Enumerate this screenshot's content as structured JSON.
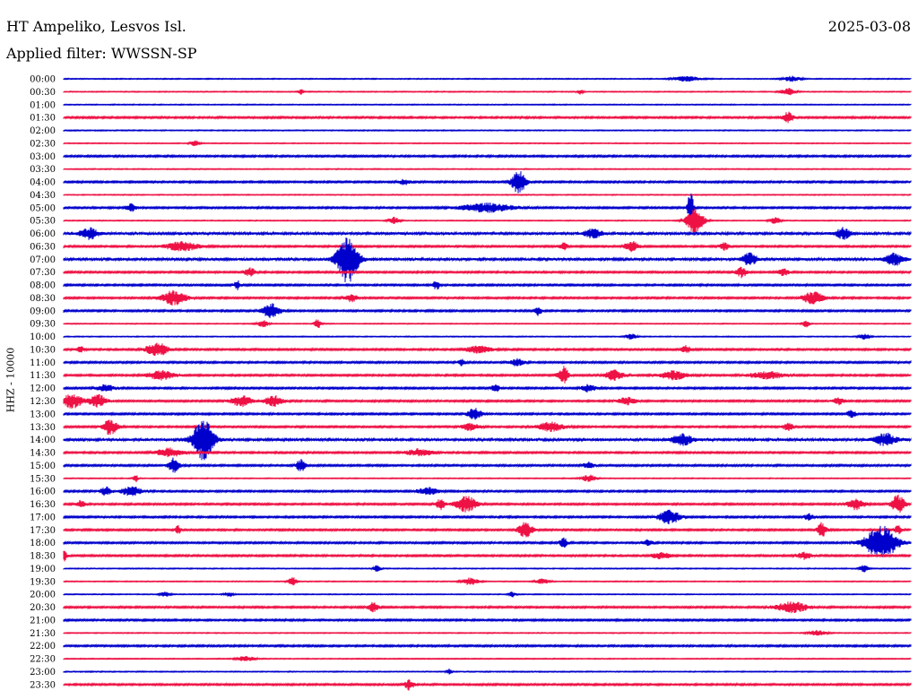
{
  "header": {
    "station": "HT Ampeliko, Lesvos Isl.",
    "date": "2025-03-08",
    "filter_label": "Applied filter: WWSSN-SP"
  },
  "chart_data": {
    "type": "line",
    "title": "HT Ampeliko, Lesvos Isl.",
    "subtitle": "Applied filter: WWSSN-SP",
    "ylabel": "HHZ - 10000",
    "trace_colors": [
      "#0000cc",
      "#ee1144"
    ],
    "rows": [
      {
        "label": "00:00",
        "noise": 1,
        "events": [
          {
            "t": 0.735,
            "a": 3,
            "w": 0.015
          },
          {
            "t": 0.86,
            "a": 3,
            "w": 0.01
          }
        ]
      },
      {
        "label": "00:30",
        "noise": 1,
        "events": [
          {
            "t": 0.28,
            "a": 3,
            "w": 0.003
          },
          {
            "t": 0.61,
            "a": 3,
            "w": 0.003
          },
          {
            "t": 0.855,
            "a": 4,
            "w": 0.008
          }
        ]
      },
      {
        "label": "01:00",
        "noise": 1,
        "events": []
      },
      {
        "label": "01:30",
        "noise": 2,
        "events": [
          {
            "t": 0.855,
            "a": 6,
            "w": 0.006
          }
        ]
      },
      {
        "label": "02:00",
        "noise": 1,
        "events": []
      },
      {
        "label": "02:30",
        "noise": 1,
        "events": [
          {
            "t": 0.155,
            "a": 3,
            "w": 0.005
          }
        ]
      },
      {
        "label": "03:00",
        "noise": 2,
        "events": []
      },
      {
        "label": "03:30",
        "noise": 1,
        "events": []
      },
      {
        "label": "04:00",
        "noise": 2,
        "events": [
          {
            "t": 0.402,
            "a": 3,
            "w": 0.006
          },
          {
            "t": 0.537,
            "a": 13,
            "w": 0.008
          }
        ]
      },
      {
        "label": "04:30",
        "noise": 1,
        "events": []
      },
      {
        "label": "05:00",
        "noise": 2,
        "events": [
          {
            "t": 0.08,
            "a": 4,
            "w": 0.006
          },
          {
            "t": 0.5,
            "a": 5,
            "w": 0.03
          },
          {
            "t": 0.74,
            "a": 23,
            "w": 0.003
          }
        ]
      },
      {
        "label": "05:30",
        "noise": 1,
        "events": [
          {
            "t": 0.39,
            "a": 4,
            "w": 0.006
          },
          {
            "t": 0.745,
            "a": 14,
            "w": 0.01
          },
          {
            "t": 0.84,
            "a": 4,
            "w": 0.006
          }
        ]
      },
      {
        "label": "06:00",
        "noise": 3,
        "events": [
          {
            "t": 0.03,
            "a": 6,
            "w": 0.01
          },
          {
            "t": 0.625,
            "a": 5,
            "w": 0.01
          },
          {
            "t": 0.92,
            "a": 6,
            "w": 0.008
          }
        ]
      },
      {
        "label": "06:30",
        "noise": 2,
        "events": [
          {
            "t": 0.14,
            "a": 5,
            "w": 0.02
          },
          {
            "t": 0.59,
            "a": 4,
            "w": 0.005
          },
          {
            "t": 0.67,
            "a": 6,
            "w": 0.008
          },
          {
            "t": 0.78,
            "a": 4,
            "w": 0.005
          }
        ]
      },
      {
        "label": "07:00",
        "noise": 3,
        "events": [
          {
            "t": 0.335,
            "a": 26,
            "w": 0.012
          },
          {
            "t": 0.81,
            "a": 7,
            "w": 0.008
          },
          {
            "t": 0.98,
            "a": 7,
            "w": 0.01
          }
        ]
      },
      {
        "label": "07:30",
        "noise": 2,
        "events": [
          {
            "t": 0.22,
            "a": 5,
            "w": 0.006
          },
          {
            "t": 0.8,
            "a": 6,
            "w": 0.006
          },
          {
            "t": 0.85,
            "a": 4,
            "w": 0.006
          }
        ]
      },
      {
        "label": "08:00",
        "noise": 2,
        "events": [
          {
            "t": 0.205,
            "a": 6,
            "w": 0.003
          },
          {
            "t": 0.44,
            "a": 5,
            "w": 0.004
          }
        ]
      },
      {
        "label": "08:30",
        "noise": 2,
        "events": [
          {
            "t": 0.13,
            "a": 8,
            "w": 0.015
          },
          {
            "t": 0.34,
            "a": 4,
            "w": 0.008
          },
          {
            "t": 0.885,
            "a": 7,
            "w": 0.012
          }
        ]
      },
      {
        "label": "09:00",
        "noise": 2,
        "events": [
          {
            "t": 0.245,
            "a": 8,
            "w": 0.01
          },
          {
            "t": 0.56,
            "a": 5,
            "w": 0.004
          }
        ]
      },
      {
        "label": "09:30",
        "noise": 1,
        "events": [
          {
            "t": 0.235,
            "a": 4,
            "w": 0.006
          },
          {
            "t": 0.3,
            "a": 5,
            "w": 0.004
          },
          {
            "t": 0.876,
            "a": 4,
            "w": 0.004
          }
        ]
      },
      {
        "label": "10:00",
        "noise": 1,
        "events": [
          {
            "t": 0.67,
            "a": 3,
            "w": 0.006
          },
          {
            "t": 0.945,
            "a": 3,
            "w": 0.006
          }
        ]
      },
      {
        "label": "10:30",
        "noise": 2,
        "events": [
          {
            "t": 0.02,
            "a": 3,
            "w": 0.005
          },
          {
            "t": 0.11,
            "a": 8,
            "w": 0.012
          },
          {
            "t": 0.49,
            "a": 4,
            "w": 0.015
          },
          {
            "t": 0.735,
            "a": 4,
            "w": 0.006
          }
        ]
      },
      {
        "label": "11:00",
        "noise": 2,
        "events": [
          {
            "t": 0.47,
            "a": 4,
            "w": 0.004
          },
          {
            "t": 0.535,
            "a": 4,
            "w": 0.008
          }
        ]
      },
      {
        "label": "11:30",
        "noise": 2,
        "events": [
          {
            "t": 0.115,
            "a": 5,
            "w": 0.015
          },
          {
            "t": 0.59,
            "a": 10,
            "w": 0.006
          },
          {
            "t": 0.65,
            "a": 6,
            "w": 0.01
          },
          {
            "t": 0.72,
            "a": 5,
            "w": 0.015
          },
          {
            "t": 0.83,
            "a": 4,
            "w": 0.02
          }
        ]
      },
      {
        "label": "12:00",
        "noise": 2,
        "events": [
          {
            "t": 0.05,
            "a": 4,
            "w": 0.01
          },
          {
            "t": 0.51,
            "a": 4,
            "w": 0.005
          },
          {
            "t": 0.62,
            "a": 4,
            "w": 0.008
          }
        ]
      },
      {
        "label": "12:30",
        "noise": 2,
        "events": [
          {
            "t": 0.01,
            "a": 8,
            "w": 0.012
          },
          {
            "t": 0.04,
            "a": 7,
            "w": 0.01
          },
          {
            "t": 0.21,
            "a": 6,
            "w": 0.012
          },
          {
            "t": 0.248,
            "a": 6,
            "w": 0.01
          },
          {
            "t": 0.665,
            "a": 4,
            "w": 0.01
          },
          {
            "t": 0.915,
            "a": 4,
            "w": 0.006
          }
        ]
      },
      {
        "label": "13:00",
        "noise": 2,
        "events": [
          {
            "t": 0.485,
            "a": 6,
            "w": 0.008
          },
          {
            "t": 0.93,
            "a": 4,
            "w": 0.005
          }
        ]
      },
      {
        "label": "13:30",
        "noise": 2,
        "events": [
          {
            "t": 0.055,
            "a": 9,
            "w": 0.008
          },
          {
            "t": 0.48,
            "a": 4,
            "w": 0.01
          },
          {
            "t": 0.575,
            "a": 5,
            "w": 0.015
          },
          {
            "t": 0.855,
            "a": 4,
            "w": 0.006
          }
        ]
      },
      {
        "label": "14:00",
        "noise": 3,
        "events": [
          {
            "t": 0.165,
            "a": 24,
            "w": 0.012
          },
          {
            "t": 0.73,
            "a": 6,
            "w": 0.012
          },
          {
            "t": 0.97,
            "a": 7,
            "w": 0.012
          }
        ]
      },
      {
        "label": "14:30",
        "noise": 2,
        "events": [
          {
            "t": 0.125,
            "a": 5,
            "w": 0.015
          },
          {
            "t": 0.42,
            "a": 4,
            "w": 0.015
          }
        ]
      },
      {
        "label": "15:00",
        "noise": 2,
        "events": [
          {
            "t": 0.13,
            "a": 9,
            "w": 0.006
          },
          {
            "t": 0.28,
            "a": 7,
            "w": 0.005
          },
          {
            "t": 0.62,
            "a": 4,
            "w": 0.006
          }
        ]
      },
      {
        "label": "15:30",
        "noise": 1,
        "events": [
          {
            "t": 0.085,
            "a": 4,
            "w": 0.003
          },
          {
            "t": 0.62,
            "a": 4,
            "w": 0.008
          }
        ]
      },
      {
        "label": "16:00",
        "noise": 2,
        "events": [
          {
            "t": 0.05,
            "a": 5,
            "w": 0.006
          },
          {
            "t": 0.08,
            "a": 5,
            "w": 0.012
          },
          {
            "t": 0.43,
            "a": 4,
            "w": 0.012
          }
        ]
      },
      {
        "label": "16:30",
        "noise": 2,
        "events": [
          {
            "t": 0.02,
            "a": 4,
            "w": 0.005
          },
          {
            "t": 0.445,
            "a": 6,
            "w": 0.005
          },
          {
            "t": 0.475,
            "a": 9,
            "w": 0.012
          },
          {
            "t": 0.935,
            "a": 6,
            "w": 0.01
          },
          {
            "t": 0.985,
            "a": 10,
            "w": 0.008
          }
        ]
      },
      {
        "label": "17:00",
        "noise": 2,
        "events": [
          {
            "t": 0.715,
            "a": 8,
            "w": 0.012
          },
          {
            "t": 0.88,
            "a": 4,
            "w": 0.005
          }
        ]
      },
      {
        "label": "17:30",
        "noise": 2,
        "events": [
          {
            "t": 0.135,
            "a": 5,
            "w": 0.003
          },
          {
            "t": 0.545,
            "a": 9,
            "w": 0.008
          },
          {
            "t": 0.895,
            "a": 8,
            "w": 0.005
          },
          {
            "t": 0.985,
            "a": 5,
            "w": 0.004
          }
        ]
      },
      {
        "label": "18:00",
        "noise": 2,
        "events": [
          {
            "t": 0.59,
            "a": 6,
            "w": 0.004
          },
          {
            "t": 0.69,
            "a": 4,
            "w": 0.005
          },
          {
            "t": 0.965,
            "a": 19,
            "w": 0.018
          }
        ]
      },
      {
        "label": "18:30",
        "noise": 2,
        "events": [
          {
            "t": 0.0,
            "a": 6,
            "w": 0.004
          },
          {
            "t": 0.705,
            "a": 4,
            "w": 0.01
          },
          {
            "t": 0.875,
            "a": 4,
            "w": 0.008
          }
        ]
      },
      {
        "label": "19:00",
        "noise": 1,
        "events": [
          {
            "t": 0.37,
            "a": 4,
            "w": 0.004
          },
          {
            "t": 0.945,
            "a": 4,
            "w": 0.005
          }
        ]
      },
      {
        "label": "19:30",
        "noise": 1,
        "events": [
          {
            "t": 0.27,
            "a": 5,
            "w": 0.005
          },
          {
            "t": 0.48,
            "a": 4,
            "w": 0.01
          },
          {
            "t": 0.565,
            "a": 3,
            "w": 0.008
          }
        ]
      },
      {
        "label": "20:00",
        "noise": 1,
        "events": [
          {
            "t": 0.12,
            "a": 3,
            "w": 0.005
          },
          {
            "t": 0.195,
            "a": 3,
            "w": 0.005
          },
          {
            "t": 0.53,
            "a": 3,
            "w": 0.004
          }
        ]
      },
      {
        "label": "20:30",
        "noise": 2,
        "events": [
          {
            "t": 0.365,
            "a": 5,
            "w": 0.006
          },
          {
            "t": 0.86,
            "a": 6,
            "w": 0.018
          }
        ]
      },
      {
        "label": "21:00",
        "noise": 2,
        "events": []
      },
      {
        "label": "21:30",
        "noise": 1,
        "events": [
          {
            "t": 0.89,
            "a": 3,
            "w": 0.01
          }
        ]
      },
      {
        "label": "22:00",
        "noise": 2,
        "events": []
      },
      {
        "label": "22:30",
        "noise": 1,
        "events": [
          {
            "t": 0.215,
            "a": 3,
            "w": 0.01
          }
        ]
      },
      {
        "label": "23:00",
        "noise": 1,
        "events": [
          {
            "t": 0.455,
            "a": 3,
            "w": 0.003
          }
        ]
      },
      {
        "label": "23:30",
        "noise": 2,
        "events": [
          {
            "t": 0.408,
            "a": 6,
            "w": 0.005
          }
        ]
      }
    ]
  }
}
